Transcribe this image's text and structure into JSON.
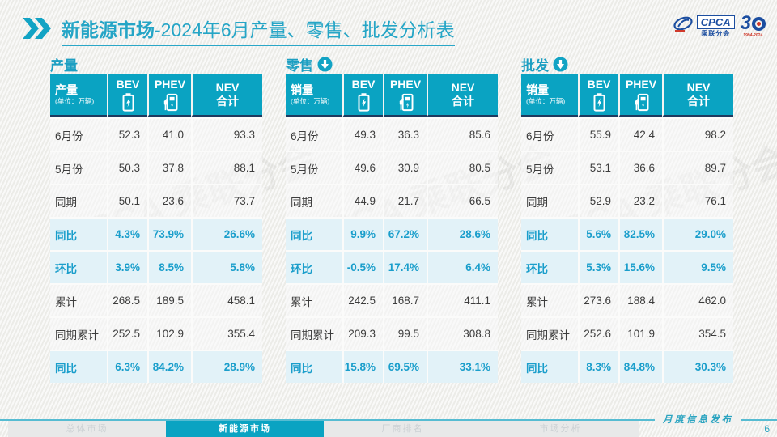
{
  "title": {
    "highlight": "新能源市场",
    "rest": "-2024年6月产量、零售、批发分析表"
  },
  "logos": {
    "cpca_name": "CPCA",
    "cpca_sub": "乘联分会",
    "anniv_3": "3",
    "anniv_years": "1994-2024"
  },
  "watermark": "CPCA 乘联分会",
  "colors": {
    "teal": "#0aa3c2",
    "navy": "#1e3a5f",
    "pct": "#1a9ecb",
    "highlight_bg": "#e2f2f8"
  },
  "tables": [
    {
      "section": "产量",
      "arrow": false,
      "first_col": {
        "label": "产量",
        "unit": "(单位：万辆)"
      },
      "columns": [
        {
          "label": "BEV",
          "icon": "battery-icon"
        },
        {
          "label": "PHEV",
          "icon": "charger-icon"
        },
        {
          "label": "NEV 合计",
          "icon": ""
        }
      ],
      "rows": [
        {
          "label": "6月份",
          "values": [
            "52.3",
            "41.0",
            "93.3"
          ],
          "highlight": false
        },
        {
          "label": "5月份",
          "values": [
            "50.3",
            "37.8",
            "88.1"
          ],
          "highlight": false
        },
        {
          "label": "同期",
          "values": [
            "50.1",
            "23.6",
            "73.7"
          ],
          "highlight": false
        },
        {
          "label": "同比",
          "values": [
            "4.3%",
            "73.9%",
            "26.6%"
          ],
          "highlight": true
        },
        {
          "label": "环比",
          "values": [
            "3.9%",
            "8.5%",
            "5.8%"
          ],
          "highlight": true
        },
        {
          "label": "累计",
          "values": [
            "268.5",
            "189.5",
            "458.1"
          ],
          "highlight": false
        },
        {
          "label": "同期累计",
          "values": [
            "252.5",
            "102.9",
            "355.4"
          ],
          "highlight": false
        },
        {
          "label": "同比",
          "values": [
            "6.3%",
            "84.2%",
            "28.9%"
          ],
          "highlight": true
        }
      ]
    },
    {
      "section": "零售",
      "arrow": true,
      "first_col": {
        "label": "销量",
        "unit": "(单位：万辆)"
      },
      "columns": [
        {
          "label": "BEV",
          "icon": "battery-icon"
        },
        {
          "label": "PHEV",
          "icon": "charger-icon"
        },
        {
          "label": "NEV 合计",
          "icon": ""
        }
      ],
      "rows": [
        {
          "label": "6月份",
          "values": [
            "49.3",
            "36.3",
            "85.6"
          ],
          "highlight": false
        },
        {
          "label": "5月份",
          "values": [
            "49.6",
            "30.9",
            "80.5"
          ],
          "highlight": false
        },
        {
          "label": "同期",
          "values": [
            "44.9",
            "21.7",
            "66.5"
          ],
          "highlight": false
        },
        {
          "label": "同比",
          "values": [
            "9.9%",
            "67.2%",
            "28.6%"
          ],
          "highlight": true
        },
        {
          "label": "环比",
          "values": [
            "-0.5%",
            "17.4%",
            "6.4%"
          ],
          "highlight": true
        },
        {
          "label": "累计",
          "values": [
            "242.5",
            "168.7",
            "411.1"
          ],
          "highlight": false
        },
        {
          "label": "同期累计",
          "values": [
            "209.3",
            "99.5",
            "308.8"
          ],
          "highlight": false
        },
        {
          "label": "同比",
          "values": [
            "15.8%",
            "69.5%",
            "33.1%"
          ],
          "highlight": true
        }
      ]
    },
    {
      "section": "批发",
      "arrow": true,
      "first_col": {
        "label": "销量",
        "unit": "(单位：万辆)"
      },
      "columns": [
        {
          "label": "BEV",
          "icon": "battery-icon"
        },
        {
          "label": "PHEV",
          "icon": "charger-icon"
        },
        {
          "label": "NEV 合计",
          "icon": ""
        }
      ],
      "rows": [
        {
          "label": "6月份",
          "values": [
            "55.9",
            "42.4",
            "98.2"
          ],
          "highlight": false
        },
        {
          "label": "5月份",
          "values": [
            "53.1",
            "36.6",
            "89.7"
          ],
          "highlight": false
        },
        {
          "label": "同期",
          "values": [
            "52.9",
            "23.2",
            "76.1"
          ],
          "highlight": false
        },
        {
          "label": "同比",
          "values": [
            "5.6%",
            "82.5%",
            "29.0%"
          ],
          "highlight": true
        },
        {
          "label": "环比",
          "values": [
            "5.3%",
            "15.6%",
            "9.5%"
          ],
          "highlight": true
        },
        {
          "label": "累计",
          "values": [
            "273.6",
            "188.4",
            "462.0"
          ],
          "highlight": false
        },
        {
          "label": "同期累计",
          "values": [
            "252.6",
            "101.9",
            "354.5"
          ],
          "highlight": false
        },
        {
          "label": "同比",
          "values": [
            "8.3%",
            "84.8%",
            "30.3%"
          ],
          "highlight": true
        }
      ]
    }
  ],
  "footer": {
    "tabs": [
      {
        "label": "总体市场",
        "active": false
      },
      {
        "label": "新能源市场",
        "active": true
      },
      {
        "label": "厂商排名",
        "active": false
      },
      {
        "label": "市场分析",
        "active": false
      }
    ],
    "publish": "月度信息发布",
    "page": "6"
  }
}
